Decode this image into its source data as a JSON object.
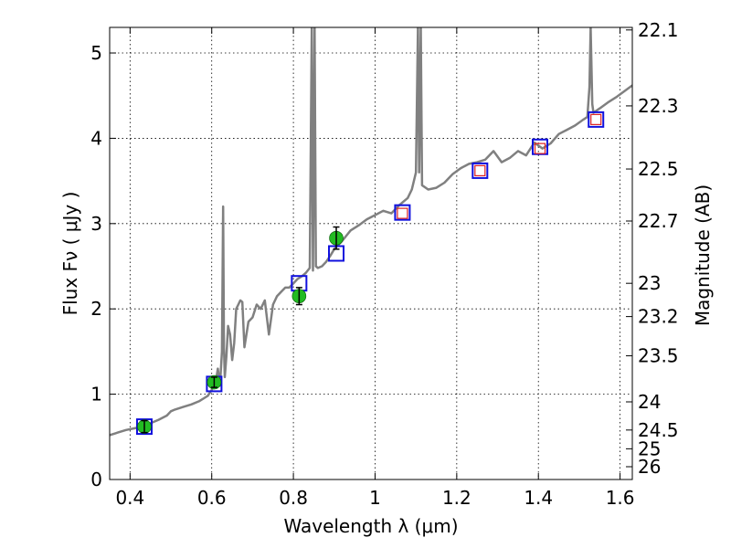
{
  "chart_data": {
    "type": "line",
    "title": "",
    "xlabel": "Wavelength  λ (μm)",
    "ylabel": "Flux  Fν  ( μJy )",
    "ylabel_right": "Magnitude (AB)",
    "xlim": [
      0.35,
      1.63
    ],
    "ylim": [
      0,
      5.3
    ],
    "grid": true,
    "x_ticks": [
      0.4,
      0.6,
      0.8,
      1.0,
      1.2,
      1.4,
      1.6
    ],
    "x_tick_labels": [
      "0.4",
      "0.6",
      "0.8",
      "1",
      "1.2",
      "1.4",
      "1.6"
    ],
    "y_ticks": [
      0,
      1,
      2,
      3,
      4,
      5
    ],
    "y_tick_labels": [
      "0",
      "1",
      "2",
      "3",
      "4",
      "5"
    ],
    "mag_ticks": [
      {
        "label": "22.1",
        "flux": 5.27
      },
      {
        "label": "22.3",
        "flux": 4.38
      },
      {
        "label": "22.5",
        "flux": 3.64
      },
      {
        "label": "22.7",
        "flux": 3.03
      },
      {
        "label": "23",
        "flux": 2.3
      },
      {
        "label": "23.2",
        "flux": 1.91
      },
      {
        "label": "23.5",
        "flux": 1.45
      },
      {
        "label": "24",
        "flux": 0.91
      },
      {
        "label": "24.5",
        "flux": 0.58
      },
      {
        "label": "25",
        "flux": 0.36
      },
      {
        "label": "26",
        "flux": 0.15
      }
    ],
    "series": [
      {
        "name": "model spectrum",
        "kind": "line",
        "color": "#808080",
        "x": [
          0.35,
          0.37,
          0.39,
          0.41,
          0.43,
          0.45,
          0.47,
          0.49,
          0.5,
          0.51,
          0.53,
          0.55,
          0.57,
          0.59,
          0.6,
          0.61,
          0.615,
          0.62,
          0.625,
          0.628,
          0.63,
          0.632,
          0.636,
          0.64,
          0.645,
          0.65,
          0.655,
          0.66,
          0.665,
          0.67,
          0.675,
          0.68,
          0.69,
          0.7,
          0.71,
          0.72,
          0.73,
          0.74,
          0.75,
          0.76,
          0.77,
          0.78,
          0.79,
          0.8,
          0.81,
          0.82,
          0.83,
          0.84,
          0.845,
          0.848,
          0.852,
          0.855,
          0.86,
          0.87,
          0.88,
          0.89,
          0.9,
          0.92,
          0.94,
          0.96,
          0.98,
          1.0,
          1.02,
          1.04,
          1.06,
          1.08,
          1.09,
          1.1,
          1.105,
          1.108,
          1.112,
          1.115,
          1.13,
          1.15,
          1.17,
          1.19,
          1.21,
          1.23,
          1.25,
          1.27,
          1.29,
          1.31,
          1.33,
          1.35,
          1.37,
          1.39,
          1.41,
          1.43,
          1.45,
          1.47,
          1.49,
          1.51,
          1.52,
          1.525,
          1.528,
          1.532,
          1.535,
          1.55,
          1.57,
          1.59,
          1.61,
          1.63
        ],
        "y": [
          0.52,
          0.55,
          0.58,
          0.6,
          0.62,
          0.66,
          0.7,
          0.75,
          0.8,
          0.82,
          0.85,
          0.88,
          0.92,
          0.98,
          1.05,
          1.15,
          1.3,
          1.1,
          1.5,
          3.2,
          1.55,
          1.2,
          1.45,
          1.8,
          1.7,
          1.4,
          1.6,
          2.0,
          2.05,
          2.1,
          2.08,
          1.55,
          1.85,
          1.9,
          2.05,
          2.0,
          2.1,
          1.7,
          2.05,
          2.15,
          2.2,
          2.25,
          2.25,
          2.3,
          2.35,
          2.38,
          2.42,
          2.48,
          5.3,
          2.45,
          5.3,
          2.5,
          2.48,
          2.5,
          2.55,
          2.62,
          2.7,
          2.8,
          2.92,
          2.98,
          3.05,
          3.1,
          3.15,
          3.12,
          3.22,
          3.3,
          3.4,
          3.6,
          5.3,
          3.6,
          5.3,
          3.45,
          3.4,
          3.42,
          3.48,
          3.58,
          3.65,
          3.7,
          3.72,
          3.75,
          3.85,
          3.72,
          3.77,
          3.85,
          3.8,
          3.95,
          3.88,
          3.94,
          4.05,
          4.1,
          4.15,
          4.22,
          4.25,
          4.6,
          5.3,
          4.4,
          4.3,
          4.35,
          4.42,
          4.48,
          4.55,
          4.62
        ]
      },
      {
        "name": "model photometry",
        "kind": "open-square",
        "color": "#1010dd",
        "x": [
          0.435,
          0.606,
          0.814,
          0.905,
          1.067,
          1.257,
          1.404,
          1.541
        ],
        "y": [
          0.62,
          1.12,
          2.3,
          2.65,
          3.13,
          3.62,
          3.9,
          4.22
        ]
      },
      {
        "name": "observed (model-band)",
        "kind": "small-open-square",
        "color": "#dd2020",
        "x": [
          1.067,
          1.257,
          1.404,
          1.541
        ],
        "y": [
          3.12,
          3.62,
          3.88,
          4.22
        ]
      },
      {
        "name": "observed photometry",
        "kind": "filled-circle-errorbar",
        "color": "#22bb22",
        "x": [
          0.435,
          0.606,
          0.814,
          0.905
        ],
        "y": [
          0.62,
          1.14,
          2.15,
          2.83
        ],
        "yerr": [
          0.07,
          0.06,
          0.1,
          0.13
        ]
      }
    ]
  }
}
